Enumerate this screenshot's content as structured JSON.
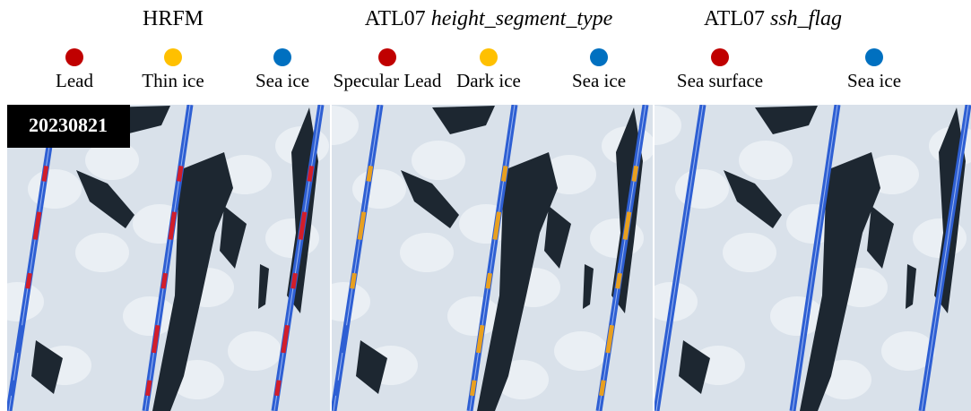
{
  "panels": [
    {
      "title": "HRFM",
      "legend": [
        {
          "label": "Lead",
          "color": "#c00000"
        },
        {
          "label": "Thin ice",
          "color": "#ffc000"
        },
        {
          "label": "Sea ice",
          "color": "#0070c0"
        }
      ]
    },
    {
      "title": "ATL07",
      "title_italic": "height_segment_type",
      "legend": [
        {
          "label": "Specular Lead",
          "color": "#c00000"
        },
        {
          "label": "Dark ice",
          "color": "#ffc000"
        },
        {
          "label": "Sea ice",
          "color": "#0070c0"
        }
      ]
    },
    {
      "title": "ATL07",
      "title_italic": "ssh_flag",
      "legend": [
        {
          "label": "Sea surface",
          "color": "#c00000"
        },
        {
          "label": "Sea ice",
          "color": "#0070c0"
        }
      ]
    }
  ],
  "date": "20230821"
}
